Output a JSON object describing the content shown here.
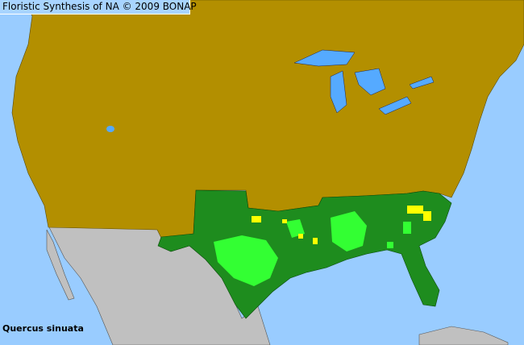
{
  "header": {
    "title": "Floristic Synthesis of NA © 2009 BONAP"
  },
  "map": {
    "species": "Quercus sinuata",
    "colors": {
      "ocean": "#99ccff",
      "present_state_absent_county": "#b38f00",
      "native_state": "#1e8c1e",
      "native_county": "#33ff33",
      "rare_county": "#ffff00",
      "outside_range": "#c0c0c0",
      "lakes": "#55aaff"
    }
  }
}
